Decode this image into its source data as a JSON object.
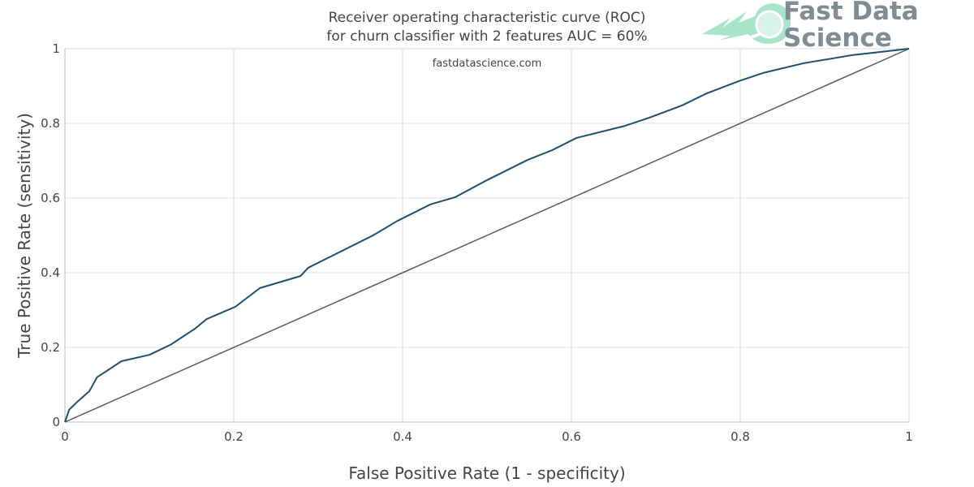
{
  "chart_data": {
    "type": "line",
    "title": "Receiver operating characteristic curve (ROC)\nfor churn classifier with 2 features AUC = 60%",
    "title_lines": [
      "Receiver operating characteristic curve (ROC)",
      "for churn classifier with 2 features AUC = 60%"
    ],
    "subtitle": "fastdatascience.com",
    "xlabel": "False Positive Rate (1 - specificity)",
    "ylabel": "True Positive Rate (sensitivity)",
    "xlim": [
      0,
      1
    ],
    "ylim": [
      0,
      1
    ],
    "xticks": [
      "0",
      "0.2",
      "0.4",
      "0.6",
      "0.8",
      "1"
    ],
    "yticks": [
      "0",
      "0.2",
      "0.4",
      "0.6",
      "0.8",
      "1"
    ],
    "grid": true,
    "series": [
      {
        "color": "#1f4e6e",
        "x": [
          0,
          0.005,
          0.015,
          0.029,
          0.038,
          0.067,
          0.1,
          0.125,
          0.154,
          0.168,
          0.202,
          0.231,
          0.279,
          0.288,
          0.327,
          0.365,
          0.394,
          0.433,
          0.462,
          0.5,
          0.548,
          0.577,
          0.606,
          0.663,
          0.692,
          0.731,
          0.76,
          0.798,
          0.827,
          0.875,
          0.933,
          1
        ],
        "y": [
          0,
          0.033,
          0.055,
          0.083,
          0.12,
          0.163,
          0.18,
          0.207,
          0.25,
          0.276,
          0.309,
          0.359,
          0.391,
          0.413,
          0.457,
          0.5,
          0.539,
          0.583,
          0.602,
          0.648,
          0.702,
          0.728,
          0.761,
          0.793,
          0.815,
          0.848,
          0.88,
          0.913,
          0.935,
          0.961,
          0.983,
          1
        ]
      },
      {
        "color": "#5a5a5a",
        "x": [
          0,
          1
        ],
        "y": [
          0,
          1
        ]
      }
    ]
  },
  "logo": {
    "line1": "Fast Data",
    "line2": "Science",
    "color": "#a8e4cb"
  }
}
